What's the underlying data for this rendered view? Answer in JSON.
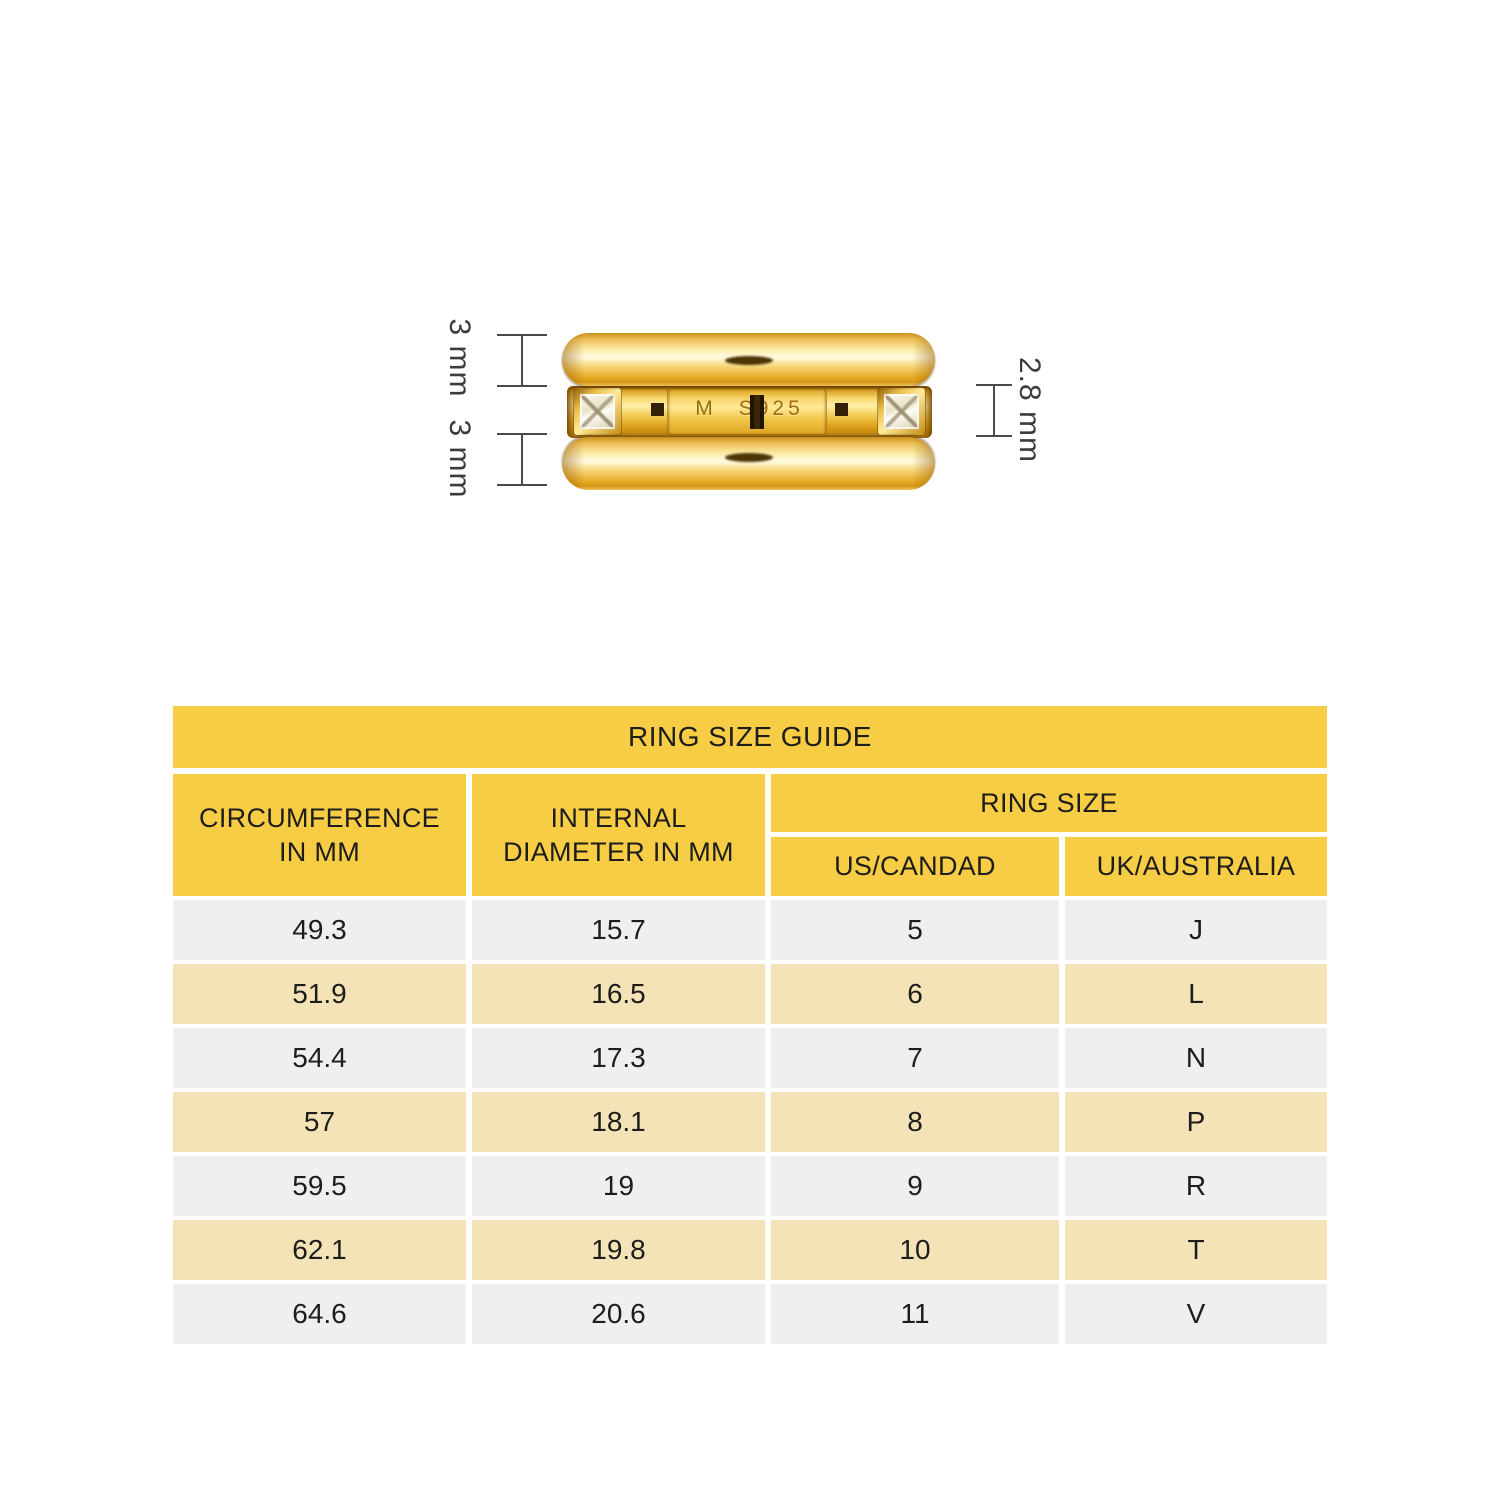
{
  "chart_data": {
    "type": "table",
    "title": "RING SIZE GUIDE",
    "column_groups": [
      "CIRCUMFERENCE IN MM",
      "INTERNAL DIAMETER IN MM",
      "RING SIZE"
    ],
    "columns": [
      "CIRCUMFERENCE IN MM",
      "INTERNAL DIAMETER IN MM",
      "US/CANDAD",
      "UK/AUSTRALIA"
    ],
    "rows": [
      [
        "49.3",
        "15.7",
        "5",
        "J"
      ],
      [
        "51.9",
        "16.5",
        "6",
        "L"
      ],
      [
        "54.4",
        "17.3",
        "7",
        "N"
      ],
      [
        "57",
        "18.1",
        "8",
        "P"
      ],
      [
        "59.5",
        "19",
        "9",
        "R"
      ],
      [
        "62.1",
        "19.8",
        "10",
        "T"
      ],
      [
        "64.6",
        "20.6",
        "11",
        "V"
      ]
    ]
  },
  "table": {
    "title": "RING SIZE GUIDE",
    "header": {
      "circumference_line1": "CIRCUMFERENCE",
      "circumference_line2": "IN MM",
      "diameter_line1": "INTERNAL",
      "diameter_line2": "DIAMETER IN MM",
      "ring_size": "RING SIZE",
      "us_canada": "US/CANDAD",
      "uk_australia": "UK/AUSTRALIA"
    }
  },
  "figure": {
    "type": "gold ring with stacked bands and dimension annotations",
    "engraving": {
      "maker_mark": "M",
      "purity_mark": "S925"
    },
    "dimensions": {
      "top_band": "3 mm",
      "bottom_band": "3 mm",
      "middle_band": "2.8 mm"
    }
  },
  "colors": {
    "header_yellow": "#f7cd46",
    "row_tan": "#f5e3b8",
    "row_gray": "#f0efed",
    "table_text": "#1d1d1b",
    "dimension_lines": "#4a4a4a",
    "gold_light": "#ffefa9",
    "gold_mid": "#f3c94e",
    "gold_deep": "#c4880f"
  }
}
